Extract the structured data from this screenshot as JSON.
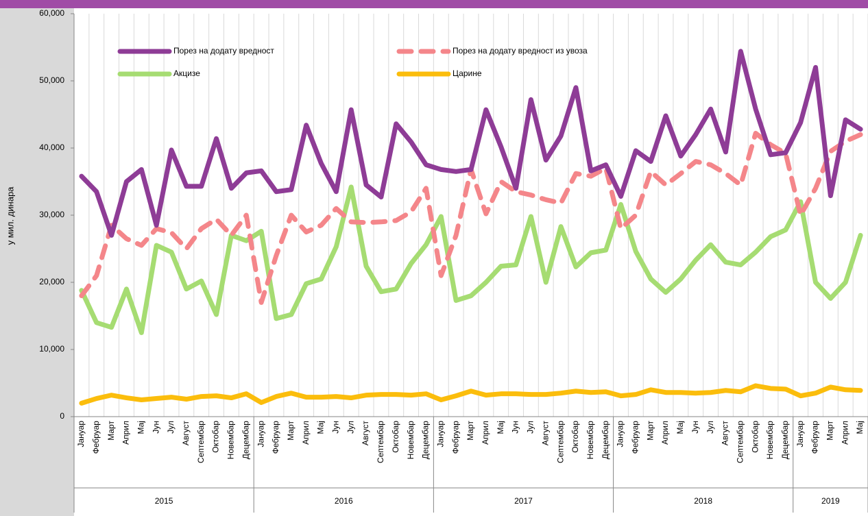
{
  "chart_data": {
    "type": "line",
    "y_axis_label": "у мил. динара",
    "categories": [
      "Јануар",
      "Фебруар",
      "Март",
      "Април",
      "Мај",
      "Јун",
      "Јул",
      "Август",
      "Септембар",
      "Октобар",
      "Новембар",
      "Децембар",
      "Јануар",
      "Фебруар",
      "Март",
      "Април",
      "Мај",
      "Јун",
      "Јул",
      "Август",
      "Септембар",
      "Октобар",
      "Новембар",
      "Децембар",
      "Јануар",
      "Фебруар",
      "Март",
      "Април",
      "Мај",
      "Јун",
      "Јул",
      "Август",
      "Септембар",
      "Октобар",
      "Новембар",
      "Децембар",
      "Јануар",
      "Фебруар",
      "Март",
      "Април",
      "Мај",
      "Јун",
      "Јул",
      "Август",
      "Септембар",
      "Октобар",
      "Новембар",
      "Децембар",
      "Јануар",
      "Фебруар",
      "Март",
      "Април",
      "Мај"
    ],
    "x_groups": [
      {
        "label": "2015",
        "span": 12
      },
      {
        "label": "2016",
        "span": 12
      },
      {
        "label": "2017",
        "span": 12
      },
      {
        "label": "2018",
        "span": 12
      },
      {
        "label": "2019",
        "span": 5
      }
    ],
    "ylim": [
      0,
      60000
    ],
    "yticks": [
      0,
      {
        "value": 10000,
        "label": "10,000"
      },
      {
        "value": 20000,
        "label": "20,000"
      },
      {
        "value": 30000,
        "label": "30,000"
      },
      {
        "value": 40000,
        "label": "40,000"
      },
      {
        "value": 50000,
        "label": "50,000"
      },
      {
        "value": 60000,
        "label": "60,000"
      }
    ],
    "grid": true,
    "series": [
      {
        "name": "Порез на додату вредност",
        "color": "#8e3c96",
        "dashed": false,
        "values": [
          35800,
          33500,
          27000,
          35000,
          36800,
          28500,
          39700,
          34300,
          34300,
          41400,
          34000,
          36300,
          36600,
          33500,
          33800,
          43400,
          37700,
          33500,
          45700,
          34500,
          32700,
          43600,
          40900,
          37500,
          36800,
          36500,
          36800,
          45700,
          40200,
          34000,
          47200,
          38200,
          41800,
          49000,
          36600,
          37500,
          32800,
          39600,
          38000,
          44800,
          38800,
          42000,
          45800,
          39400,
          54400,
          45800,
          39000,
          39300,
          43800,
          52000,
          32900,
          44200,
          42800
        ]
      },
      {
        "name": "Порез на додату вредност из увоза",
        "color": "#f4868a",
        "dashed": true,
        "values": [
          18000,
          21000,
          28500,
          26500,
          25500,
          28000,
          27400,
          25000,
          28000,
          29400,
          27000,
          30000,
          17000,
          24000,
          30000,
          27500,
          28500,
          31000,
          29000,
          28900,
          29000,
          29200,
          30500,
          34000,
          21000,
          27000,
          36800,
          30200,
          35000,
          33500,
          33000,
          32300,
          31800,
          36200,
          35800,
          37000,
          28000,
          30000,
          36500,
          34500,
          36200,
          38000,
          37500,
          36200,
          34500,
          42200,
          40500,
          39200,
          30000,
          34000,
          39500,
          41000,
          42000
        ]
      },
      {
        "name": "Акцизе",
        "color": "#a6dc72",
        "dashed": false,
        "values": [
          18800,
          14000,
          13300,
          19000,
          12500,
          25500,
          24500,
          19000,
          20200,
          15200,
          27000,
          26200,
          27600,
          14600,
          15200,
          19800,
          20500,
          25300,
          34200,
          22400,
          18600,
          19000,
          22800,
          25600,
          29800,
          17300,
          18000,
          20000,
          22400,
          22600,
          29800,
          20000,
          28300,
          22300,
          24400,
          24800,
          31600,
          24600,
          20500,
          18500,
          20500,
          23300,
          25600,
          23000,
          22600,
          24500,
          26800,
          27800,
          32000,
          20000,
          17600,
          20000,
          27000
        ]
      },
      {
        "name": "Царине",
        "color": "#fbbd0c",
        "dashed": false,
        "values": [
          2000,
          2700,
          3200,
          2800,
          2500,
          2700,
          2900,
          2600,
          3000,
          3100,
          2800,
          3400,
          2100,
          3000,
          3500,
          2900,
          2900,
          3000,
          2800,
          3200,
          3300,
          3300,
          3200,
          3400,
          2500,
          3100,
          3800,
          3200,
          3400,
          3400,
          3300,
          3300,
          3500,
          3800,
          3600,
          3700,
          3100,
          3300,
          4000,
          3600,
          3600,
          3500,
          3600,
          3900,
          3700,
          4600,
          4200,
          4100,
          3100,
          3500,
          4400,
          4000,
          3900
        ]
      }
    ]
  }
}
